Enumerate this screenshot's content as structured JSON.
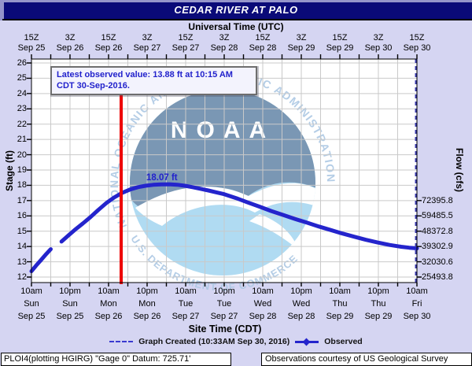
{
  "title_bar": {
    "title": "CEDAR RIVER AT PALO"
  },
  "legend": {
    "graph_created_label": "Graph Created (10:33AM Sep 30, 2016)",
    "observed_label": "Observed"
  },
  "watermark": {
    "org": "NOAA",
    "ring_top": "NATIONAL OCEANIC AND ATMOSPHERIC ADMINISTRATION",
    "ring_bottom": "U.S. DEPARTMENT OF COMMERCE"
  },
  "footer": {
    "left": "PLOI4(plotting HGIRG) \"Gage 0\" Datum: 725.71'",
    "right": "Observations courtesy of US Geological Survey"
  },
  "colors": {
    "page_bg": "#d5d5f2",
    "title_bg": "#0a0a78",
    "observed_line": "#2424cc",
    "red_marker": "#ee0000",
    "graph_created_line": "#3a3aae",
    "grid": "#c9c9c9",
    "logo_dark": "#6f8fae",
    "logo_light": "#aad9f1",
    "logo_ring_text": "#aec9e4"
  },
  "chart_data": {
    "type": "line",
    "title": "CEDAR RIVER AT PALO",
    "top_axis": {
      "title": "Universal Time (UTC)",
      "ticks": [
        {
          "time": "15Z",
          "date": "Sep 25"
        },
        {
          "time": "3Z",
          "date": "Sep 26"
        },
        {
          "time": "15Z",
          "date": "Sep 26"
        },
        {
          "time": "3Z",
          "date": "Sep 27"
        },
        {
          "time": "15Z",
          "date": "Sep 27"
        },
        {
          "time": "3Z",
          "date": "Sep 28"
        },
        {
          "time": "15Z",
          "date": "Sep 28"
        },
        {
          "time": "3Z",
          "date": "Sep 29"
        },
        {
          "time": "15Z",
          "date": "Sep 29"
        },
        {
          "time": "3Z",
          "date": "Sep 30"
        },
        {
          "time": "15Z",
          "date": "Sep 30"
        }
      ]
    },
    "bottom_axis": {
      "title": "Site Time (CDT)",
      "ticks": [
        {
          "time": "10am",
          "day": "Sun",
          "date": "Sep 25"
        },
        {
          "time": "10pm",
          "day": "Sun",
          "date": "Sep 25"
        },
        {
          "time": "10am",
          "day": "Mon",
          "date": "Sep 26"
        },
        {
          "time": "10pm",
          "day": "Mon",
          "date": "Sep 26"
        },
        {
          "time": "10am",
          "day": "Tue",
          "date": "Sep 27"
        },
        {
          "time": "10pm",
          "day": "Tue",
          "date": "Sep 27"
        },
        {
          "time": "10am",
          "day": "Wed",
          "date": "Sep 28"
        },
        {
          "time": "10pm",
          "day": "Wed",
          "date": "Sep 28"
        },
        {
          "time": "10am",
          "day": "Thu",
          "date": "Sep 29"
        },
        {
          "time": "10pm",
          "day": "Thu",
          "date": "Sep 29"
        },
        {
          "time": "10am",
          "day": "Fri",
          "date": "Sep 30"
        }
      ]
    },
    "left_axis": {
      "title": "Stage (ft)",
      "min": 12,
      "max": 26,
      "ticks": [
        26,
        25,
        24,
        23,
        22,
        21,
        20,
        19,
        18,
        17,
        16,
        15,
        14,
        13,
        12
      ]
    },
    "right_axis": {
      "title": "Flow (cfs)",
      "ticks": [
        {
          "stage": 17,
          "flow": "72395.8"
        },
        {
          "stage": 16,
          "flow": "59485.5"
        },
        {
          "stage": 15,
          "flow": "48372.8"
        },
        {
          "stage": 14,
          "flow": "39302.9"
        },
        {
          "stage": 13,
          "flow": "32030.6"
        },
        {
          "stage": 12,
          "flow": "25493.8"
        }
      ]
    },
    "series": [
      {
        "name": "Observed",
        "units": "ft",
        "x_units": "half-days since 10am Sun Sep 25 (1 unit = 12 h)",
        "segments": [
          [
            [
              0,
              12.38
            ],
            [
              0.12,
              12.75
            ],
            [
              0.25,
              13.12
            ],
            [
              0.38,
              13.5
            ],
            [
              0.5,
              13.82
            ]
          ],
          [
            [
              0.78,
              14.32
            ],
            [
              0.95,
              14.7
            ],
            [
              1.12,
              15.08
            ],
            [
              1.33,
              15.5
            ],
            [
              1.53,
              15.92
            ],
            [
              1.73,
              16.38
            ],
            [
              1.94,
              16.84
            ],
            [
              2.14,
              17.2
            ],
            [
              2.35,
              17.5
            ],
            [
              2.55,
              17.72
            ],
            [
              2.76,
              17.88
            ],
            [
              2.96,
              17.97
            ],
            [
              3.16,
              18.03
            ],
            [
              3.37,
              18.06
            ],
            [
              3.57,
              18.07
            ],
            [
              3.78,
              18.04
            ],
            [
              3.98,
              17.97
            ],
            [
              4.18,
              17.88
            ],
            [
              4.39,
              17.77
            ],
            [
              4.59,
              17.66
            ],
            [
              4.8,
              17.54
            ],
            [
              5.0,
              17.42
            ],
            [
              5.31,
              17.16
            ],
            [
              5.61,
              16.88
            ],
            [
              5.92,
              16.6
            ],
            [
              6.22,
              16.32
            ],
            [
              6.53,
              16.06
            ],
            [
              6.84,
              15.8
            ],
            [
              7.14,
              15.56
            ],
            [
              7.45,
              15.31
            ],
            [
              7.76,
              15.08
            ],
            [
              8.06,
              14.85
            ],
            [
              8.37,
              14.64
            ],
            [
              8.67,
              14.44
            ],
            [
              8.98,
              14.26
            ],
            [
              9.29,
              14.1
            ],
            [
              9.59,
              13.98
            ],
            [
              9.8,
              13.92
            ],
            [
              10.0,
              13.88
            ]
          ]
        ]
      }
    ],
    "peak_label": {
      "text": "18.07 ft",
      "value_ft": 18.07
    },
    "latest_observed": {
      "line1": "Latest observed value: 13.88 ft at 10:15 AM",
      "line2": "CDT 30-Sep-2016.",
      "value_ft": 13.88
    },
    "markers": {
      "red_line_t": 2.327,
      "graph_created_t": 9.97
    }
  }
}
